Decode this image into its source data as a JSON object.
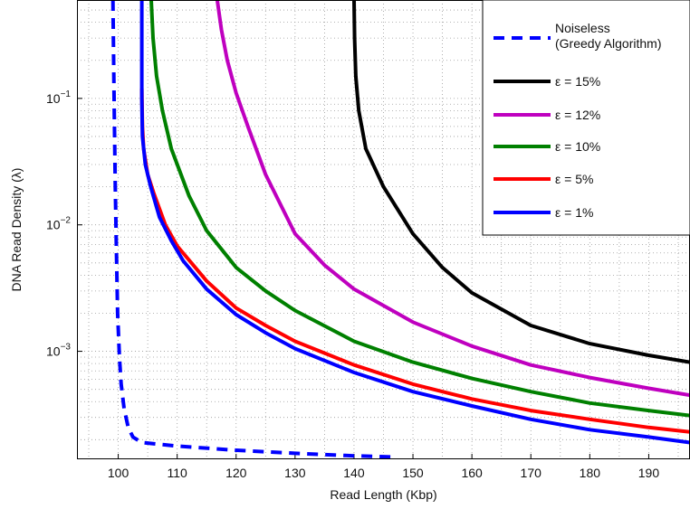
{
  "chart_data": {
    "type": "line",
    "xlabel": "Read Length (Kbp)",
    "ylabel": "DNA Read Density (λ)",
    "xscale": "linear",
    "yscale": "log",
    "xlim": [
      93,
      197
    ],
    "ylim": [
      0.00014,
      0.6
    ],
    "xticks": [
      100,
      110,
      120,
      130,
      140,
      150,
      160,
      170,
      180,
      190
    ],
    "yticks": [
      {
        "value": 0.001,
        "base": "10",
        "exp": "−3"
      },
      {
        "value": 0.01,
        "base": "10",
        "exp": "−2"
      },
      {
        "value": 0.1,
        "base": "10",
        "exp": "−1"
      }
    ],
    "grid": "dotted, major and minor",
    "legend_position": "top-right",
    "series": [
      {
        "name": "Noiseless",
        "name_line2": "(Greedy Algorithm)",
        "color": "#0000ff",
        "dash": "dashed",
        "points": [
          [
            99.1,
            0.6
          ],
          [
            99.3,
            0.1
          ],
          [
            99.5,
            0.02
          ],
          [
            99.7,
            0.006
          ],
          [
            99.9,
            0.002
          ],
          [
            100.2,
            0.0009
          ],
          [
            100.5,
            0.00055
          ],
          [
            101,
            0.00035
          ],
          [
            101.7,
            0.00025
          ],
          [
            102.5,
            0.00021
          ],
          [
            104,
            0.00019
          ],
          [
            110,
            0.000178
          ],
          [
            120,
            0.000165
          ],
          [
            130,
            0.000156
          ],
          [
            140,
            0.000149
          ],
          [
            147,
            0.000146
          ]
        ]
      },
      {
        "name": "ε = 15%",
        "color": "#000000",
        "dash": "solid",
        "points": [
          [
            140,
            0.6
          ],
          [
            140.1,
            0.3
          ],
          [
            140.3,
            0.15
          ],
          [
            140.8,
            0.08
          ],
          [
            142,
            0.04
          ],
          [
            145,
            0.02
          ],
          [
            150,
            0.0085
          ],
          [
            155,
            0.0046
          ],
          [
            160,
            0.0029
          ],
          [
            170,
            0.0016
          ],
          [
            180,
            0.00115
          ],
          [
            190,
            0.00093
          ],
          [
            197,
            0.00082
          ]
        ]
      },
      {
        "name": "ε = 12%",
        "color": "#bf00bf",
        "dash": "solid",
        "points": [
          [
            116.8,
            0.6
          ],
          [
            117.5,
            0.35
          ],
          [
            118.5,
            0.2
          ],
          [
            120,
            0.11
          ],
          [
            122,
            0.06
          ],
          [
            125,
            0.025
          ],
          [
            130,
            0.0085
          ],
          [
            135,
            0.0048
          ],
          [
            140,
            0.0031
          ],
          [
            150,
            0.0017
          ],
          [
            160,
            0.0011
          ],
          [
            170,
            0.00078
          ],
          [
            180,
            0.00062
          ],
          [
            190,
            0.00051
          ],
          [
            197,
            0.00045
          ]
        ]
      },
      {
        "name": "ε = 10%",
        "color": "#008000",
        "dash": "solid",
        "points": [
          [
            105.6,
            0.6
          ],
          [
            105.9,
            0.3
          ],
          [
            106.5,
            0.15
          ],
          [
            107.5,
            0.08
          ],
          [
            109,
            0.04
          ],
          [
            112,
            0.017
          ],
          [
            115,
            0.009
          ],
          [
            120,
            0.0046
          ],
          [
            125,
            0.003
          ],
          [
            130,
            0.0021
          ],
          [
            140,
            0.0012
          ],
          [
            150,
            0.00082
          ],
          [
            160,
            0.00061
          ],
          [
            170,
            0.00048
          ],
          [
            180,
            0.00039
          ],
          [
            190,
            0.00034
          ],
          [
            197,
            0.00031
          ]
        ]
      },
      {
        "name": "ε = 5%",
        "color": "#ff0000",
        "dash": "solid",
        "points": [
          [
            104,
            0.12
          ],
          [
            104.1,
            0.06
          ],
          [
            104.3,
            0.04
          ],
          [
            105,
            0.025
          ],
          [
            106,
            0.018
          ],
          [
            108,
            0.01
          ],
          [
            110,
            0.0068
          ],
          [
            115,
            0.0036
          ],
          [
            120,
            0.0022
          ],
          [
            125,
            0.0016
          ],
          [
            130,
            0.0012
          ],
          [
            140,
            0.00078
          ],
          [
            150,
            0.00055
          ],
          [
            160,
            0.00042
          ],
          [
            170,
            0.00034
          ],
          [
            180,
            0.00029
          ],
          [
            190,
            0.00025
          ],
          [
            197,
            0.00023
          ]
        ]
      },
      {
        "name": "ε = 1%",
        "color": "#0000ff",
        "dash": "solid",
        "points": [
          [
            104,
            0.6
          ],
          [
            104,
            0.1
          ],
          [
            104.1,
            0.05
          ],
          [
            104.6,
            0.03
          ],
          [
            105.5,
            0.02
          ],
          [
            107,
            0.0115
          ],
          [
            109,
            0.0075
          ],
          [
            111,
            0.0052
          ],
          [
            115,
            0.0031
          ],
          [
            120,
            0.00195
          ],
          [
            125,
            0.0014
          ],
          [
            130,
            0.00105
          ],
          [
            140,
            0.00068
          ],
          [
            150,
            0.00048
          ],
          [
            160,
            0.00037
          ],
          [
            170,
            0.00029
          ],
          [
            180,
            0.00024
          ],
          [
            190,
            0.00021
          ],
          [
            197,
            0.00019
          ]
        ]
      }
    ]
  }
}
